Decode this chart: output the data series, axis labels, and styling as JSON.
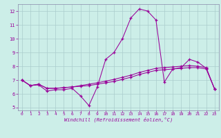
{
  "xlabel": "Windchill (Refroidissement éolien,°C)",
  "bg_color": "#cceee8",
  "grid_color": "#aacccc",
  "line_color": "#990099",
  "spine_color": "#8888aa",
  "xlim": [
    -0.5,
    23.5
  ],
  "ylim": [
    4.8,
    12.5
  ],
  "xticks": [
    0,
    1,
    2,
    3,
    4,
    5,
    6,
    7,
    8,
    9,
    10,
    11,
    12,
    13,
    14,
    15,
    16,
    17,
    18,
    19,
    20,
    21,
    22,
    23
  ],
  "yticks": [
    5,
    6,
    7,
    8,
    9,
    10,
    11,
    12
  ],
  "line1_x": [
    0,
    1,
    2,
    3,
    4,
    5,
    6,
    7,
    8,
    9,
    10,
    11,
    12,
    13,
    14,
    15,
    16,
    17,
    18,
    19,
    20,
    21,
    22,
    23
  ],
  "line1_y": [
    7.0,
    6.6,
    6.65,
    6.2,
    6.3,
    6.3,
    6.4,
    5.85,
    5.15,
    6.5,
    8.5,
    9.0,
    10.0,
    11.5,
    12.15,
    12.0,
    11.35,
    6.85,
    7.8,
    7.9,
    8.5,
    8.3,
    7.85,
    6.35
  ],
  "line2_x": [
    0,
    1,
    2,
    3,
    4,
    5,
    6,
    7,
    8,
    9,
    10,
    11,
    12,
    13,
    14,
    15,
    16,
    17,
    18,
    19,
    20,
    21,
    22,
    23
  ],
  "line2_y": [
    7.0,
    6.6,
    6.7,
    6.4,
    6.4,
    6.45,
    6.5,
    6.55,
    6.6,
    6.7,
    6.8,
    6.9,
    7.05,
    7.2,
    7.4,
    7.55,
    7.7,
    7.75,
    7.8,
    7.85,
    7.9,
    7.9,
    7.8,
    6.35
  ],
  "line3_x": [
    0,
    1,
    2,
    3,
    4,
    5,
    6,
    7,
    8,
    9,
    10,
    11,
    12,
    13,
    14,
    15,
    16,
    17,
    18,
    19,
    20,
    21,
    22,
    23
  ],
  "line3_y": [
    7.0,
    6.6,
    6.7,
    6.4,
    6.4,
    6.45,
    6.5,
    6.6,
    6.7,
    6.8,
    6.92,
    7.05,
    7.2,
    7.35,
    7.55,
    7.7,
    7.85,
    7.9,
    7.95,
    8.0,
    8.05,
    8.0,
    7.9,
    6.35
  ]
}
